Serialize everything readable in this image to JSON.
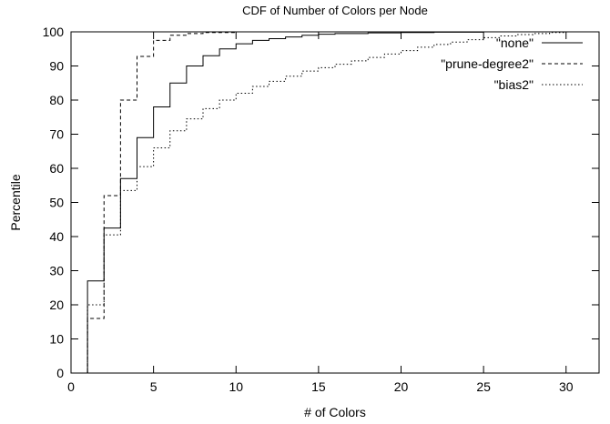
{
  "chart_data": {
    "type": "line",
    "step": true,
    "title": "CDF of Number of Colors per Node",
    "xlabel": "# of Colors",
    "ylabel": "Percentile",
    "xlim": [
      0,
      32
    ],
    "ylim": [
      0,
      100
    ],
    "xticks": [
      0,
      5,
      10,
      15,
      20,
      25,
      30
    ],
    "yticks": [
      0,
      10,
      20,
      30,
      40,
      50,
      60,
      70,
      80,
      90,
      100
    ],
    "grid": false,
    "legend_position": "top-right",
    "series": [
      {
        "name": "\"none\"",
        "dash": "solid",
        "x": [
          1,
          2,
          3,
          4,
          5,
          6,
          7,
          8,
          9,
          10,
          11,
          12,
          13,
          14,
          15,
          16,
          18,
          20,
          22,
          25,
          30
        ],
        "y": [
          27,
          42.5,
          57,
          69,
          78,
          85,
          90,
          93,
          95,
          96.5,
          97.5,
          98,
          98.5,
          99,
          99.3,
          99.5,
          99.7,
          99.8,
          99.9,
          100,
          100
        ]
      },
      {
        "name": "\"prune-degree2\"",
        "dash": "dashed",
        "x": [
          1,
          2,
          3,
          4,
          5,
          6,
          7,
          8,
          10,
          15,
          30
        ],
        "y": [
          16,
          52,
          80,
          92.8,
          97.5,
          99,
          99.5,
          99.8,
          100,
          100,
          100
        ]
      },
      {
        "name": "\"bias2\"",
        "dash": "dotted",
        "x": [
          1,
          2,
          3,
          4,
          5,
          6,
          7,
          8,
          9,
          10,
          11,
          12,
          13,
          14,
          15,
          16,
          17,
          18,
          19,
          20,
          21,
          22,
          23,
          24,
          25,
          26,
          27,
          28,
          29,
          30
        ],
        "y": [
          20,
          40.5,
          53.5,
          60.5,
          66,
          71,
          74.5,
          77.5,
          80,
          82,
          84,
          85.5,
          87,
          88.5,
          89.5,
          90.5,
          91.5,
          92.5,
          93.5,
          94.5,
          95.5,
          96.3,
          97,
          97.7,
          98.3,
          98.8,
          99.2,
          99.5,
          99.8,
          100
        ]
      }
    ]
  }
}
